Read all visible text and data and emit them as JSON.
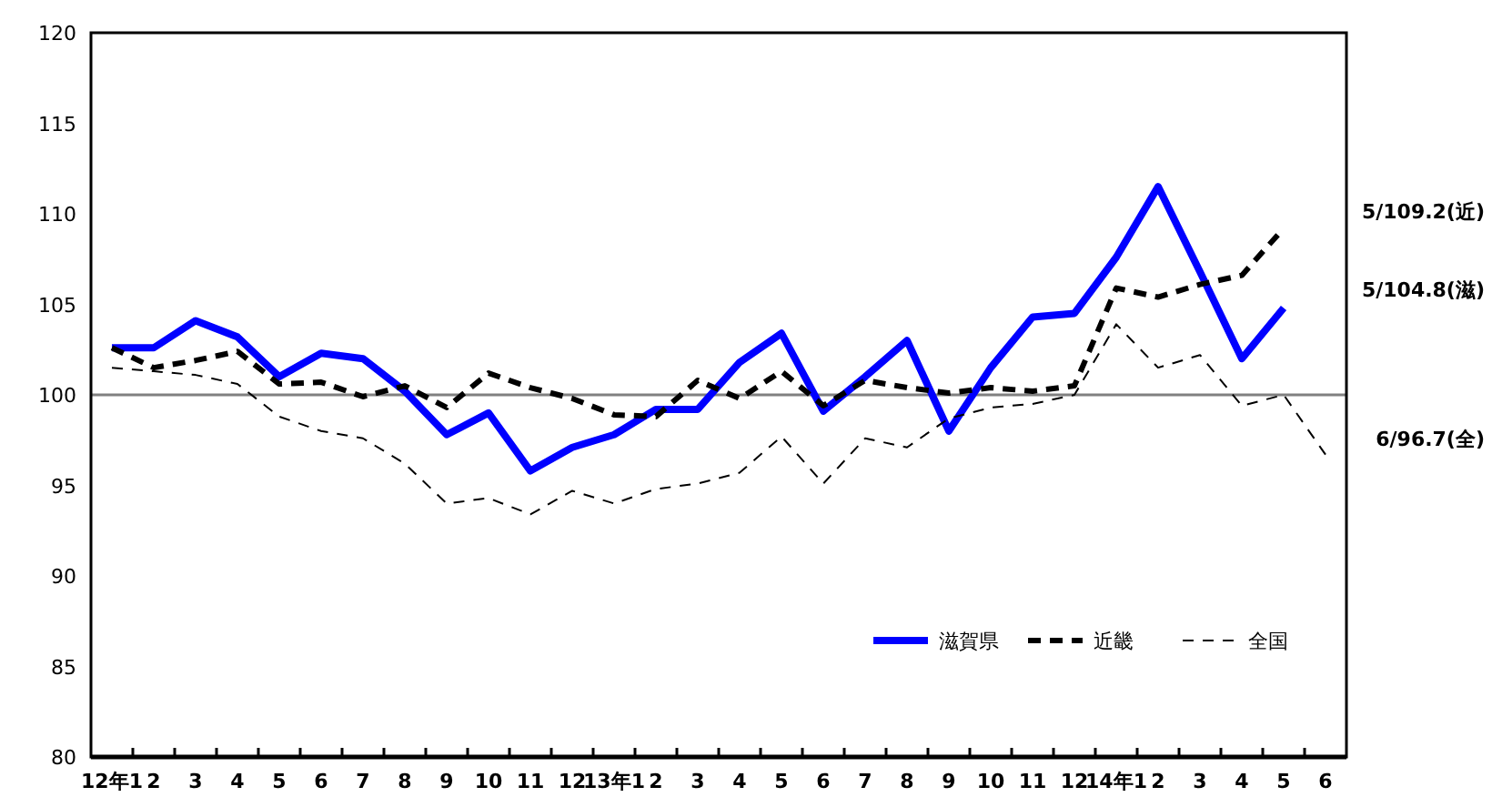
{
  "chart_data": {
    "type": "line",
    "categories": [
      "12年1",
      "2",
      "3",
      "4",
      "5",
      "6",
      "7",
      "8",
      "9",
      "10",
      "11",
      "12",
      "13年1",
      "2",
      "3",
      "4",
      "5",
      "6",
      "7",
      "8",
      "9",
      "10",
      "11",
      "12",
      "14年1",
      "2",
      "3",
      "4",
      "5",
      "6"
    ],
    "series": [
      {
        "name": "滋賀県",
        "color": "#0000ff",
        "line_style": "solid",
        "values": [
          102.6,
          102.6,
          104.1,
          103.2,
          101.0,
          102.3,
          102.0,
          100.2,
          97.8,
          99.0,
          95.8,
          97.1,
          97.8,
          99.2,
          99.2,
          101.8,
          103.4,
          99.1,
          101.0,
          103.0,
          98.0,
          101.5,
          104.3,
          104.5,
          107.6,
          111.5,
          106.8,
          102.0,
          104.8,
          null
        ]
      },
      {
        "name": "近畿",
        "color": "#000000",
        "line_style": "dashed",
        "values": [
          102.6,
          101.5,
          101.9,
          102.4,
          100.6,
          100.7,
          99.9,
          100.5,
          99.3,
          101.2,
          100.4,
          99.8,
          98.9,
          98.8,
          100.8,
          99.8,
          101.3,
          99.4,
          100.8,
          100.4,
          100.1,
          100.4,
          100.2,
          100.5,
          105.9,
          105.4,
          106.1,
          106.6,
          109.2,
          null
        ]
      },
      {
        "name": "全国",
        "color": "#000000",
        "line_style": "dashed",
        "values": [
          101.5,
          101.3,
          101.1,
          100.6,
          98.8,
          98.0,
          97.6,
          96.2,
          94.0,
          94.3,
          93.4,
          94.7,
          94.0,
          94.8,
          95.1,
          95.7,
          97.7,
          95.1,
          97.6,
          97.1,
          98.7,
          99.3,
          99.5,
          100.0,
          103.9,
          101.5,
          102.2,
          99.4,
          100.0,
          96.7
        ]
      }
    ],
    "ylim": [
      80,
      120
    ],
    "yticks": [
      80,
      85,
      90,
      95,
      100,
      105,
      110,
      115,
      120
    ],
    "ref_lines": [
      {
        "axis": "y",
        "value": 100,
        "color": "#808080"
      }
    ],
    "annotations": [
      "5/109.2(近)",
      "5/104.8(滋)",
      "6/96.7(全)"
    ],
    "legend": "bottom right",
    "grid": false,
    "marker": "none"
  }
}
